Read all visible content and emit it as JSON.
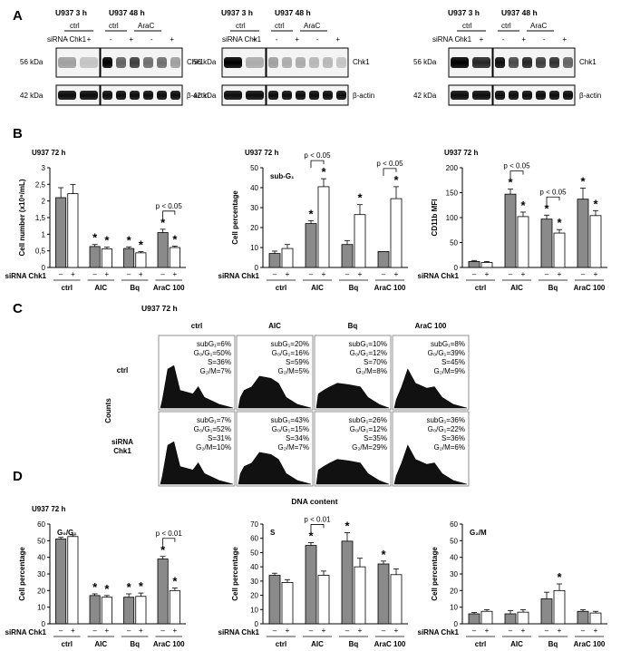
{
  "panel_labels": {
    "a": "A",
    "b": "B",
    "c": "C",
    "d": "D"
  },
  "western": {
    "time_3h": "U937 3 h",
    "time_48h": "U937 48 h",
    "ctrl": "ctrl",
    "arac": "AraC",
    "sirna": "siRNA Chk1",
    "minus": "-",
    "plus": "+",
    "kda56": "56 kDa",
    "kda42": "42 kDa",
    "chk1": "Chk1",
    "actin": "β-actin"
  },
  "common": {
    "time72": "U937 72 h",
    "sirna": "siRNA Chk1",
    "minus": "–",
    "plus": "+",
    "groups": [
      "ctrl",
      "AIC",
      "Bq",
      "AraC 100"
    ],
    "star": "*"
  },
  "chart_data": [
    {
      "type": "bar",
      "panel": "B1",
      "title": "U937 72 h",
      "ylabel": "Cell number (x10⁶/mL)",
      "ylim": [
        0,
        3
      ],
      "yticks": [
        "0",
        "0,5",
        "1",
        "1,5",
        "2",
        "2,5",
        "3"
      ],
      "categories": [
        "ctrl",
        "AIC",
        "Bq",
        "AraC 100"
      ],
      "series": [
        {
          "values": [
            2.1,
            0.63,
            0.57,
            1.05
          ],
          "errors": [
            0.3,
            0.06,
            0.05,
            0.1
          ]
        },
        {
          "values": [
            2.22,
            0.56,
            0.44,
            0.6
          ],
          "errors": [
            0.28,
            0.05,
            0.04,
            0.04
          ]
        }
      ],
      "stars": [
        [
          false,
          true,
          true,
          true
        ],
        [
          false,
          true,
          true,
          true
        ]
      ],
      "pvalues": [
        {
          "group": 3,
          "text": "p < 0.05"
        }
      ]
    },
    {
      "type": "bar",
      "panel": "B2",
      "title": "U937 72 h",
      "inner_title": "sub-G₁",
      "ylabel": "Cell percentage",
      "ylim": [
        0,
        50
      ],
      "yticks": [
        "0",
        "10",
        "20",
        "30",
        "40",
        "50"
      ],
      "categories": [
        "ctrl",
        "AIC",
        "Bq",
        "AraC 100"
      ],
      "series": [
        {
          "values": [
            7,
            22,
            11.5,
            8
          ],
          "errors": [
            1.2,
            1.5,
            2,
            0
          ]
        },
        {
          "values": [
            9.5,
            40.5,
            26.5,
            34.5
          ],
          "errors": [
            2,
            4,
            5,
            6
          ]
        }
      ],
      "stars": [
        [
          false,
          true,
          false,
          false
        ],
        [
          false,
          true,
          true,
          true
        ]
      ],
      "pvalues": [
        {
          "group": 1,
          "text": "p < 0.05"
        },
        {
          "group": 3,
          "text": "p < 0.05"
        }
      ]
    },
    {
      "type": "bar",
      "panel": "B3",
      "title": "U937 72 h",
      "ylabel": "CD11b MFI",
      "ylim": [
        0,
        200
      ],
      "yticks": [
        "0",
        "50",
        "100",
        "150",
        "200"
      ],
      "categories": [
        "ctrl",
        "AIC",
        "Bq",
        "AraC 100"
      ],
      "series": [
        {
          "values": [
            12,
            147,
            97,
            137
          ],
          "errors": [
            2,
            10,
            8,
            22
          ]
        },
        {
          "values": [
            10,
            102,
            69,
            104
          ],
          "errors": [
            2,
            9,
            7,
            10
          ]
        }
      ],
      "stars": [
        [
          false,
          true,
          true,
          true
        ],
        [
          false,
          true,
          true,
          true
        ]
      ],
      "pvalues": [
        {
          "group": 1,
          "text": "p < 0.05"
        },
        {
          "group": 2,
          "text": "p < 0.05"
        }
      ]
    },
    {
      "type": "bar",
      "panel": "D1",
      "title": "U937 72 h",
      "inner_title": "G₀/G₁",
      "ylabel": "Cell percentage",
      "ylim": [
        0,
        60
      ],
      "yticks": [
        "0",
        "10",
        "20",
        "30",
        "40",
        "50",
        "60"
      ],
      "categories": [
        "ctrl",
        "AIC",
        "Bq",
        "AraC 100"
      ],
      "series": [
        {
          "values": [
            51,
            17,
            16,
            39
          ],
          "errors": [
            1,
            1,
            2,
            1.5
          ]
        },
        {
          "values": [
            52.5,
            16,
            16.5,
            20
          ],
          "errors": [
            1,
            1,
            2,
            1.5
          ]
        }
      ],
      "stars": [
        [
          false,
          true,
          true,
          true
        ],
        [
          false,
          true,
          true,
          true
        ]
      ],
      "pvalues": [
        {
          "group": 3,
          "text": "p < 0.01"
        }
      ]
    },
    {
      "type": "bar",
      "panel": "D2",
      "inner_title": "S",
      "ylabel": "Cell percentage",
      "ylim": [
        0,
        70
      ],
      "yticks": [
        "0",
        "10",
        "20",
        "30",
        "40",
        "50",
        "60",
        "70"
      ],
      "categories": [
        "ctrl",
        "AIC",
        "Bq",
        "AraC 100"
      ],
      "series": [
        {
          "values": [
            34,
            55,
            58,
            42
          ],
          "errors": [
            1.5,
            2,
            6,
            2
          ]
        },
        {
          "values": [
            29,
            34,
            40,
            34.5
          ],
          "errors": [
            2,
            3,
            6,
            4
          ]
        }
      ],
      "stars": [
        [
          false,
          true,
          true,
          true
        ],
        [
          false,
          false,
          false,
          false
        ]
      ],
      "pvalues": [
        {
          "group": 1,
          "text": "p < 0.01"
        }
      ]
    },
    {
      "type": "bar",
      "panel": "D3",
      "inner_title": "G₂/M",
      "ylabel": "Cell percentage",
      "ylim": [
        0,
        60
      ],
      "yticks": [
        "0",
        "10",
        "20",
        "30",
        "40",
        "50",
        "60"
      ],
      "categories": [
        "ctrl",
        "AIC",
        "Bq",
        "AraC 100"
      ],
      "series": [
        {
          "values": [
            6,
            6,
            15,
            7.5
          ],
          "errors": [
            0.8,
            2,
            4,
            1
          ]
        },
        {
          "values": [
            7.5,
            7,
            20,
            6.5
          ],
          "errors": [
            1,
            1.5,
            4,
            1
          ]
        }
      ],
      "stars": [
        [
          false,
          false,
          false,
          false
        ],
        [
          false,
          false,
          true,
          false
        ]
      ],
      "pvalues": []
    }
  ],
  "cytometry": {
    "time": "U937 72 h",
    "columns": [
      "ctrl",
      "AIC",
      "Bq",
      "AraC 100"
    ],
    "rows": [
      {
        "label": "ctrl"
      },
      {
        "label": "siRNA\nChk1"
      }
    ],
    "ylabel": "Counts",
    "xlabel": "DNA content",
    "stats": [
      [
        "subG₁=6%|G₀/G₁=50%|S=36%|G₂/M=7%",
        "subG₁=20%|G₀/G₁=16%|S=59%|G₂/M=5%",
        "subG₁=10%|G₀/G₁=12%|S=70%|G₂/M=8%",
        "subG₁=8%|G₀/G₁=39%|S=45%|G₂/M=9%"
      ],
      [
        "subG₁=7%|G₀/G₁=52%|S=31%|G₂/M=10%",
        "subG₁=43%|G₀/G₁=15%|S=34%|G₂/M=7%",
        "subG₁=26%|G₀/G₁=12%|S=35%|G₂/M=29%",
        "subG₁=36%|G₀/G₁=22%|S=36%|G₂/M=6%"
      ]
    ]
  }
}
